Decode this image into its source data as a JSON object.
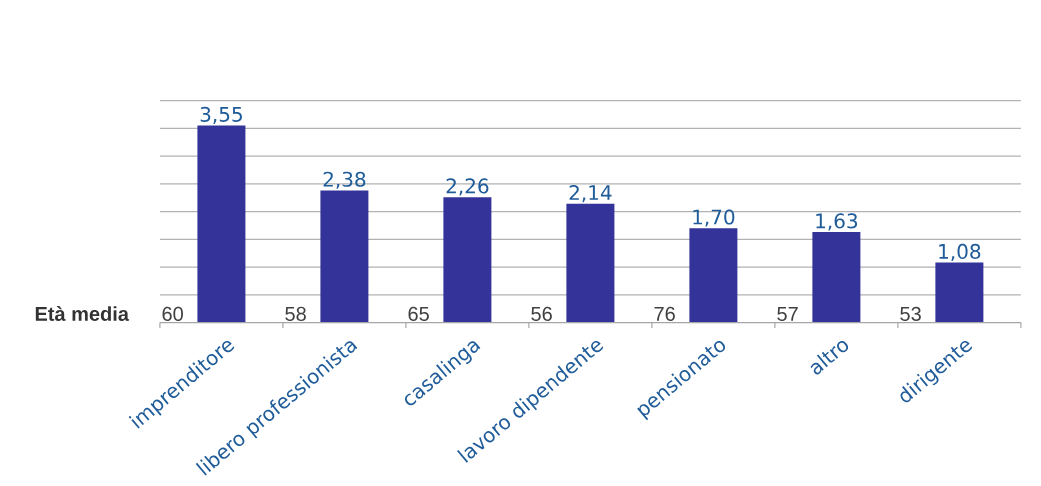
{
  "chart_data": {
    "type": "bar",
    "categories": [
      "imprenditore",
      "libero professionista",
      "casalinga",
      "lavoro dipendente",
      "pensionato",
      "altro",
      "dirigente"
    ],
    "values": [
      3.55,
      2.38,
      2.26,
      2.14,
      1.7,
      1.63,
      1.08
    ],
    "value_labels": [
      "3,55",
      "2,38",
      "2,26",
      "2,14",
      "1,70",
      "1,63",
      "1,08"
    ],
    "color": "#333399",
    "ylim": [
      0,
      4
    ],
    "yticks": [
      {
        "value": 0.5,
        "label": null
      },
      {
        "value": 1,
        "label": null
      },
      {
        "value": 1.5,
        "label": null
      },
      {
        "value": 2,
        "label": null
      },
      {
        "value": 2.5,
        "label": null
      },
      {
        "value": 3,
        "label": null
      },
      {
        "value": 3.5,
        "label": null
      },
      {
        "value": 4,
        "label": null
      }
    ],
    "grid": "y",
    "tick_labels": "x",
    "annotations": [
      "Età media",
      {
        "text": "60",
        "x": "imprenditore",
        "y": 0
      },
      {
        "text": "58",
        "x": "libero professionista",
        "y": 0
      },
      {
        "text": "65",
        "x": "casalinga",
        "y": 0
      },
      {
        "text": "56",
        "x": "lavoro dipendente",
        "y": 0
      },
      {
        "text": "76",
        "x": "pensionato",
        "y": 0
      },
      {
        "text": "57",
        "x": "altro",
        "y": 0
      },
      {
        "text": "53",
        "x": "dirigente",
        "y": 0
      }
    ]
  }
}
